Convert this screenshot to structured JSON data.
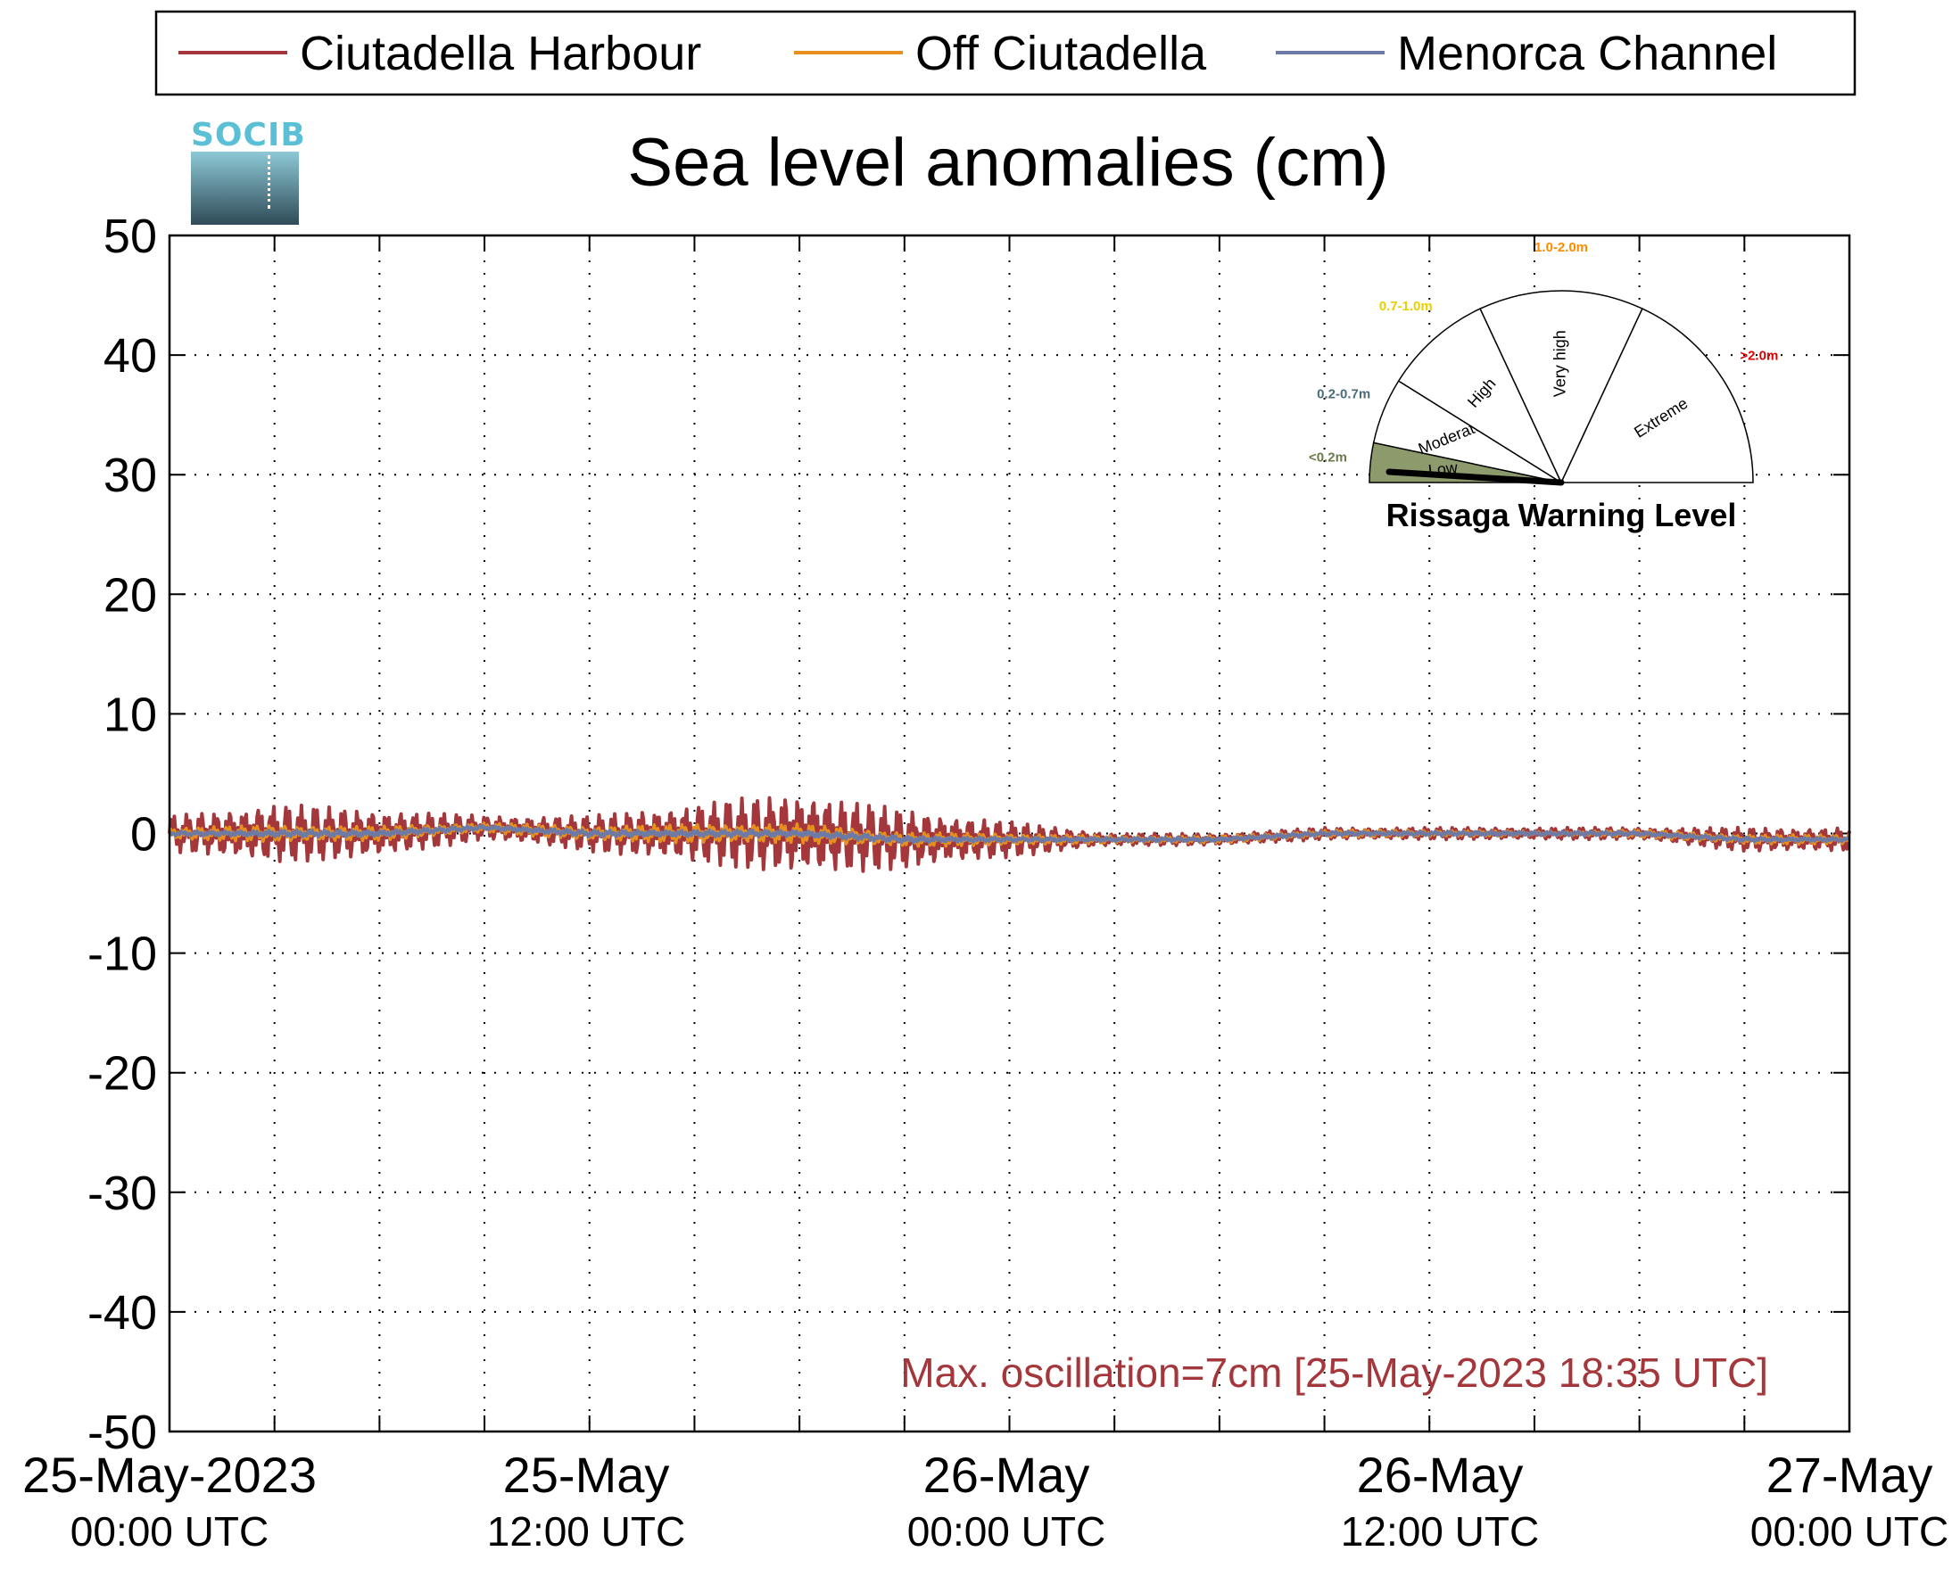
{
  "chart_data": {
    "type": "line",
    "title": "Sea level anomalies (cm)",
    "ylabel": "",
    "xlabel": "",
    "ylim": [
      -50,
      50
    ],
    "yticks": [
      50,
      40,
      30,
      20,
      10,
      0,
      -10,
      -20,
      -30,
      -40,
      -50
    ],
    "x_range": [
      "2023-05-25T00:00Z",
      "2023-05-27T00:00Z"
    ],
    "xtick_labels": [
      {
        "date": "25-May-2023",
        "time": "00:00 UTC"
      },
      {
        "date": "25-May",
        "time": "12:00 UTC"
      },
      {
        "date": "26-May",
        "time": "00:00 UTC"
      },
      {
        "date": "26-May",
        "time": "12:00 UTC"
      },
      {
        "date": "27-May",
        "time": "00:00 UTC"
      }
    ],
    "grid": true,
    "legend_position": "top",
    "x_hours": [
      0,
      3,
      6,
      9,
      12,
      15,
      18,
      21,
      24,
      27,
      30,
      33,
      36,
      39,
      42,
      45,
      48
    ],
    "series": [
      {
        "name": "Ciutadella Harbour",
        "color": "#a3373b",
        "envelope": [
          1.5,
          2.5,
          2.0,
          1.0,
          1.5,
          2.5,
          3.5,
          2.5,
          1.5,
          0.5,
          0.5,
          0.5,
          0.5,
          0.5,
          0.5,
          1.0,
          1.0
        ],
        "offset": [
          0.0,
          0.0,
          0.0,
          0.5,
          0.0,
          0.0,
          0.0,
          -0.5,
          -0.5,
          -0.5,
          -0.5,
          0.0,
          0.0,
          0.0,
          0.0,
          -0.5,
          -0.5
        ]
      },
      {
        "name": "Off Ciutadella",
        "color": "#e8901e",
        "envelope": [
          0.5,
          0.7,
          0.6,
          0.4,
          0.6,
          0.8,
          0.8,
          0.6,
          0.5,
          0.3,
          0.3,
          0.3,
          0.3,
          0.2,
          0.3,
          0.4,
          0.4
        ],
        "offset": [
          0.0,
          0.0,
          0.0,
          0.5,
          0.0,
          0.0,
          0.0,
          -0.5,
          -0.5,
          -0.5,
          -0.5,
          0.0,
          0.0,
          0.0,
          0.0,
          -0.5,
          -0.5
        ]
      },
      {
        "name": "Menorca Channel",
        "color": "#6d7aa6",
        "envelope": [
          0.2,
          0.3,
          0.3,
          0.2,
          0.3,
          0.3,
          0.3,
          0.3,
          0.2,
          0.2,
          0.2,
          0.2,
          0.2,
          0.2,
          0.2,
          0.2,
          0.2
        ],
        "offset": [
          0.0,
          0.0,
          0.0,
          0.5,
          0.0,
          0.0,
          0.0,
          -0.5,
          -0.5,
          -0.5,
          -0.5,
          0.0,
          0.0,
          0.0,
          0.0,
          -0.5,
          -0.5
        ]
      }
    ],
    "annotation": "Max. oscillation=7cm [25-May-2023 18:35 UTC]",
    "annotation_color": "#a3373b"
  },
  "logo": {
    "text": "SOCIB"
  },
  "gauge": {
    "title": "Rissaga Warning Level",
    "current_level": "Low",
    "sectors": [
      {
        "label": "Low",
        "range_label": "<0.2m",
        "range_color": "#6b7a4a",
        "fill": "#8c9a6c"
      },
      {
        "label": "Moderate",
        "range_label": "0.2-0.7m",
        "range_color": "#4a6b7a",
        "fill": "#ffffff"
      },
      {
        "label": "High",
        "range_label": "0.7-1.0m",
        "range_color": "#e8d000",
        "fill": "#ffffff"
      },
      {
        "label": "Very high",
        "range_label": "1.0-2.0m",
        "range_color": "#ff8c00",
        "fill": "#ffffff"
      },
      {
        "label": "Extreme",
        "range_label": ">2.0m",
        "range_color": "#e00000",
        "fill": "#ffffff"
      }
    ]
  }
}
